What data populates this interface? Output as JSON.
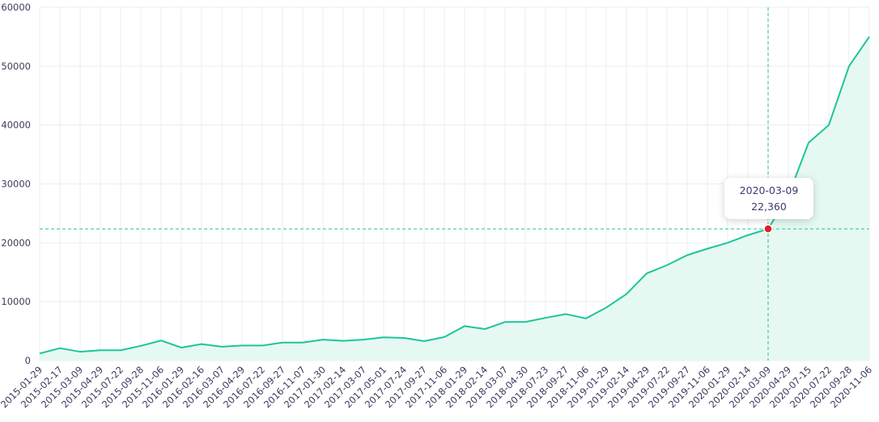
{
  "chart_data": {
    "type": "area",
    "title": "",
    "xlabel": "",
    "ylabel": "",
    "ylim": [
      0,
      60000
    ],
    "yticks": [
      0,
      10000,
      20000,
      30000,
      40000,
      50000,
      60000
    ],
    "grid": true,
    "colors": {
      "line": "#1dc59a",
      "fill": "#e6f8f2",
      "grid": "#e8edf5",
      "crosshair": "#1dc59a",
      "marker": "#e02020"
    },
    "x": [
      "2015-01-29",
      "2015-02-17",
      "2015-03-09",
      "2015-04-29",
      "2015-07-22",
      "2015-09-28",
      "2015-11-06",
      "2016-01-29",
      "2016-02-16",
      "2016-03-07",
      "2016-04-29",
      "2016-07-22",
      "2016-09-27",
      "2016-11-07",
      "2017-01-30",
      "2017-02-14",
      "2017-03-07",
      "2017-05-01",
      "2017-07-24",
      "2017-09-27",
      "2017-11-06",
      "2018-01-29",
      "2018-02-14",
      "2018-03-07",
      "2018-04-30",
      "2018-07-23",
      "2018-09-27",
      "2018-11-06",
      "2019-01-29",
      "2019-02-14",
      "2019-04-29",
      "2019-07-22",
      "2019-09-27",
      "2019-11-06",
      "2020-01-29",
      "2020-02-14",
      "2020-03-09",
      "2020-04-29",
      "2020-07-15",
      "2020-07-22",
      "2020-09-28",
      "2020-11-06"
    ],
    "series": [
      {
        "values": [
          1200,
          2100,
          1500,
          1750,
          1750,
          2500,
          3400,
          2200,
          2800,
          2350,
          2550,
          2550,
          3050,
          3050,
          3550,
          3350,
          3550,
          3950,
          3850,
          3300,
          4000,
          5850,
          5350,
          6550,
          6550,
          7250,
          7900,
          7150,
          9000,
          11300,
          14800,
          16200,
          17900,
          19000,
          20000,
          21300,
          22360,
          28000,
          37000,
          40000,
          50000,
          55000
        ]
      }
    ],
    "highlight": {
      "date": "2020-03-09",
      "label": "22,360",
      "value": 22360
    }
  }
}
